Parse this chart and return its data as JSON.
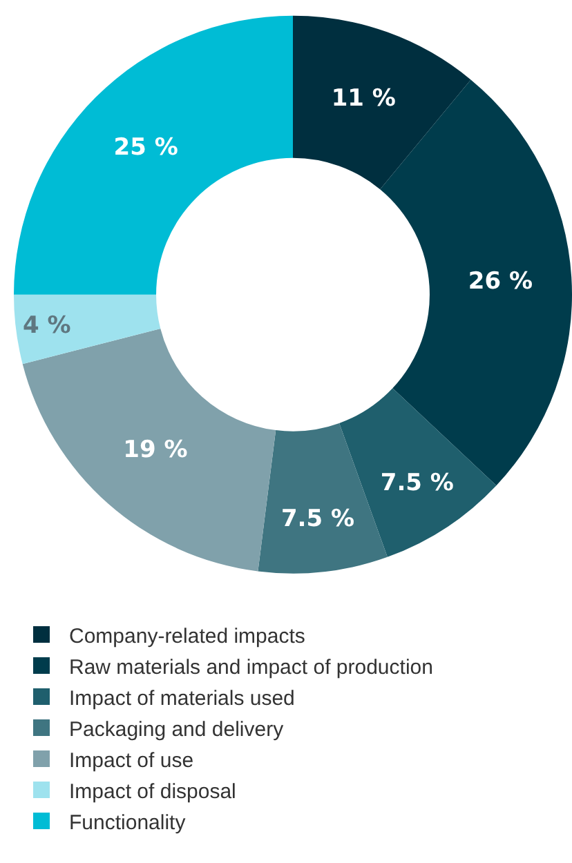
{
  "chart_data": {
    "type": "donut",
    "categories": [
      "Company-related impacts",
      "Raw materials and impact of production",
      "Impact of materials used",
      "Packaging and delivery",
      "Impact of use",
      "Impact of disposal",
      "Functionality"
    ],
    "values": [
      11,
      26,
      7.5,
      7.5,
      19,
      4,
      25
    ],
    "value_labels": [
      "11 %",
      "26 %",
      "7.5 %",
      "7.5 %",
      "19 %",
      "4 %",
      "25 %"
    ],
    "colors": [
      "#002f3f",
      "#003c4c",
      "#1f5f6d",
      "#3f7581",
      "#80a1ab",
      "#9ee2ee",
      "#00bcd5"
    ],
    "legend": "bottom"
  }
}
